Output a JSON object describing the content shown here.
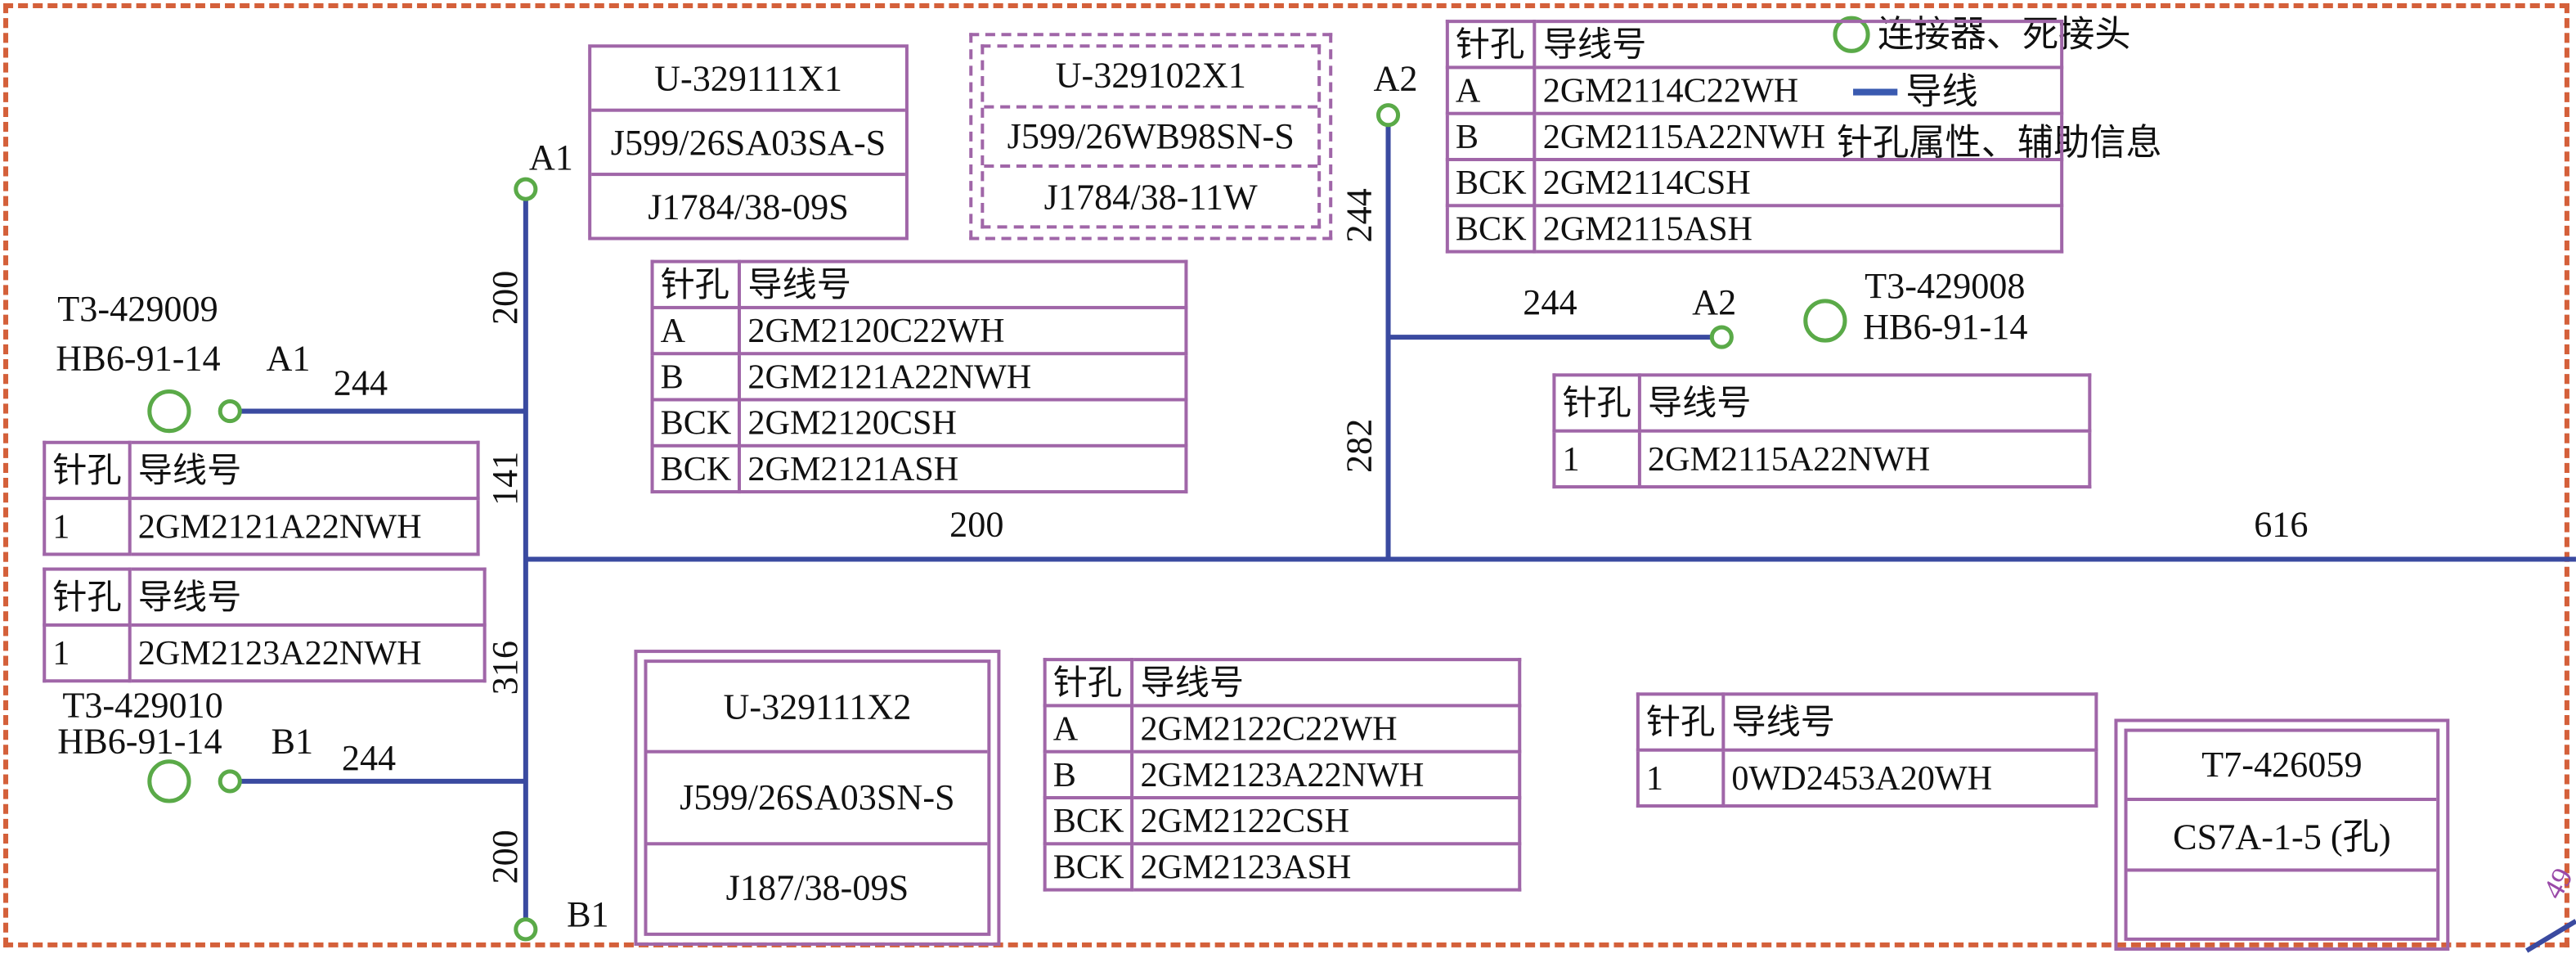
{
  "colors": {
    "frame": "#d4603a",
    "wire": "#3a4aa0",
    "connector": "#5aaa48",
    "table_border": "#a066a8"
  },
  "legend": {
    "connector_label": "连接器、死接头",
    "wire_label": "导线",
    "pin_info_label": "针孔属性、辅助信息",
    "connector_icon": "circle-icon",
    "wire_icon": "line-icon"
  },
  "connectors": {
    "t3_429009": {
      "part": "T3-429009",
      "spec": "HB6-91-14",
      "pin": "A1"
    },
    "t3_429010": {
      "part": "T3-429010",
      "spec": "HB6-91-14",
      "pin": "B1"
    },
    "t3_429008": {
      "part": "T3-429008",
      "spec": "HB6-91-14"
    },
    "node_a1": "A1",
    "node_b1": "B1",
    "node_a2_top": "A2",
    "node_a2_branch": "A2"
  },
  "lengths": {
    "w_a1": "244",
    "w_b1": "244",
    "trunk_top": "200",
    "trunk_141": "141",
    "trunk_316": "316",
    "trunk_bottom": "200",
    "main_200": "200",
    "main_616": "616",
    "a2_vertical": "244",
    "a2_282": "282",
    "a2_branch": "244"
  },
  "boxes": {
    "x1": [
      "U-329111X1",
      "J599/26SA03SA-S",
      "J1784/38-09S"
    ],
    "x1b": [
      "U-329102X1",
      "J599/26WB98SN-S",
      "J1784/38-11W"
    ],
    "x2": [
      "U-329111X2",
      "J599/26SA03SN-S",
      "J187/38-09S"
    ],
    "t7": [
      "T7-426059",
      "CS7A-1-5 (孔)",
      ""
    ]
  },
  "tables": {
    "a1": {
      "headers": [
        "针孔",
        "导线号"
      ],
      "rows": [
        [
          "A",
          "2GM2120C22WH"
        ],
        [
          "B",
          "2GM2121A22NWH"
        ],
        [
          "BCK",
          "2GM2120CSH"
        ],
        [
          "BCK",
          "2GM2121ASH"
        ]
      ]
    },
    "a2": {
      "headers": [
        "针孔",
        "导线号"
      ],
      "rows": [
        [
          "A",
          "2GM2114C22WH"
        ],
        [
          "B",
          "2GM2115A22NWH"
        ],
        [
          "BCK",
          "2GM2114CSH"
        ],
        [
          "BCK",
          "2GM2115ASH"
        ]
      ]
    },
    "t3_429008": {
      "headers": [
        "针孔",
        "导线号"
      ],
      "rows": [
        [
          "1",
          "2GM2115A22NWH"
        ]
      ]
    },
    "t3_429009": {
      "headers": [
        "针孔",
        "导线号"
      ],
      "rows": [
        [
          "1",
          "2GM2121A22NWH"
        ]
      ]
    },
    "t3_429010": {
      "headers": [
        "针孔",
        "导线号"
      ],
      "rows": [
        [
          "1",
          "2GM2123A22NWH"
        ]
      ]
    },
    "b1": {
      "headers": [
        "针孔",
        "导线号"
      ],
      "rows": [
        [
          "A",
          "2GM2122C22WH"
        ],
        [
          "B",
          "2GM2123A22NWH"
        ],
        [
          "BCK",
          "2GM2122CSH"
        ],
        [
          "BCK",
          "2GM2123ASH"
        ]
      ]
    },
    "t7": {
      "headers": [
        "针孔",
        "导线号"
      ],
      "rows": [
        [
          "1",
          "0WD2453A20WH"
        ]
      ]
    }
  },
  "edge_fragment": "49"
}
